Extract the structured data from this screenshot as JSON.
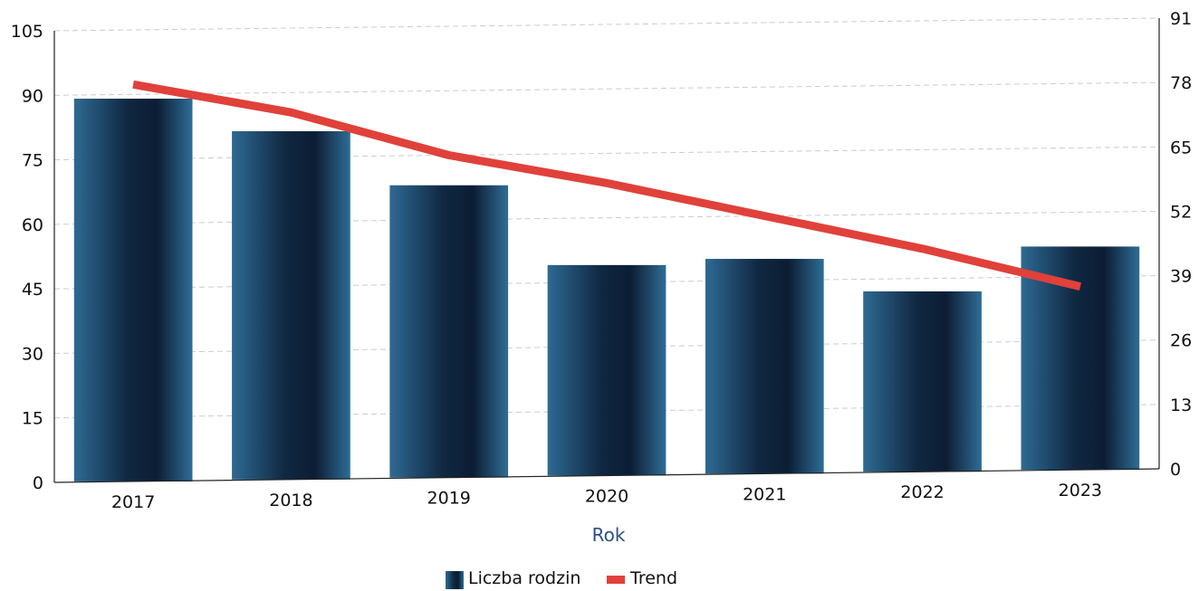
{
  "chart_data": {
    "type": "bar",
    "xlabel": "Rok",
    "categories": [
      "2017",
      "2018",
      "2019",
      "2020",
      "2021",
      "2022",
      "2023"
    ],
    "ylim": [
      0,
      105
    ],
    "yticks": [
      0,
      15,
      30,
      45,
      60,
      75,
      90,
      105
    ],
    "y2lim": [
      0,
      91
    ],
    "y2ticks": [
      0,
      13,
      26,
      39,
      52,
      65,
      78,
      91
    ],
    "series": [
      {
        "name": "Liczba rodzin",
        "type": "bar",
        "axis": "left",
        "values": [
          89,
          81,
          68,
          49,
          50,
          42,
          52
        ],
        "color": "#1c3a5c"
      },
      {
        "name": "Trend",
        "type": "line",
        "axis": "right",
        "values": [
          80,
          74,
          65,
          59,
          52,
          45,
          37
        ],
        "color": "#e0413a"
      }
    ],
    "grid": true,
    "legend": "bottom-center"
  }
}
